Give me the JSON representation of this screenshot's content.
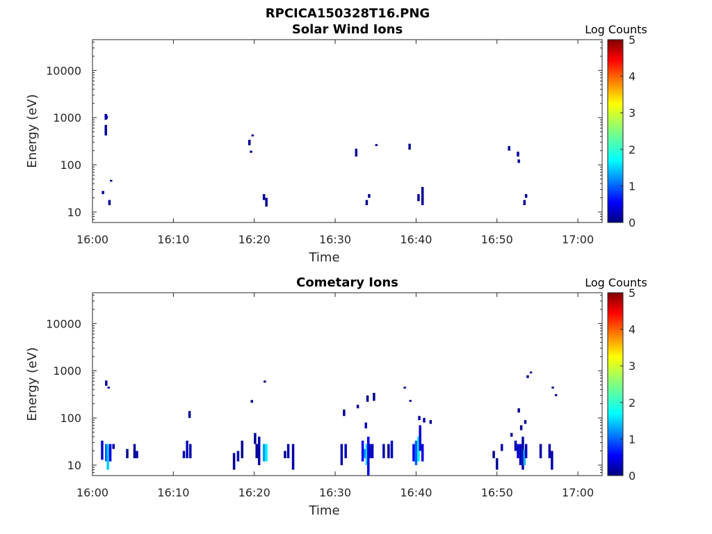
{
  "figure_title": "RPCICA150328T16.PNG",
  "chart_data": [
    {
      "type": "heatmap",
      "title": "Solar Wind Ions",
      "xlabel": "Time",
      "ylabel": "Energy (eV)",
      "x_ticks": [
        "16:00",
        "16:10",
        "16:20",
        "16:30",
        "16:40",
        "16:50",
        "17:00"
      ],
      "x_tick_minutes": [
        0,
        10,
        20,
        30,
        40,
        50,
        60
      ],
      "xlim_minutes": [
        0,
        63
      ],
      "y_scale": "log",
      "ylim": [
        6,
        45000
      ],
      "y_ticks": [
        10,
        100,
        1000,
        10000
      ],
      "y_tick_labels": [
        "10",
        "100",
        "1000",
        "10000"
      ],
      "colorbar": {
        "label": "Log Counts",
        "range": [
          0,
          5
        ],
        "ticks": [
          "0",
          "1",
          "2",
          "3",
          "4",
          "5"
        ],
        "colormap": "jet"
      },
      "cells": [
        [
          1.65,
          900,
          1200,
          0.1
        ],
        [
          1.75,
          950,
          1100,
          0.3
        ],
        [
          1.65,
          420,
          700,
          0.1
        ],
        [
          1.3,
          24,
          28,
          0.1
        ],
        [
          2.3,
          44,
          48,
          0.1
        ],
        [
          2.1,
          14,
          18,
          0.1
        ],
        [
          19.4,
          260,
          340,
          0.1
        ],
        [
          19.6,
          180,
          200,
          0.1
        ],
        [
          19.8,
          400,
          440,
          0.1
        ],
        [
          21.2,
          18,
          24,
          0.1
        ],
        [
          21.5,
          13,
          20,
          0.1
        ],
        [
          32.6,
          150,
          220,
          0.1
        ],
        [
          35.1,
          250,
          275,
          0.1
        ],
        [
          33.9,
          14,
          18,
          0.1
        ],
        [
          34.2,
          20,
          24,
          0.1
        ],
        [
          39.2,
          210,
          280,
          0.1
        ],
        [
          40.3,
          17,
          24,
          0.1
        ],
        [
          40.8,
          14,
          34,
          0.1
        ],
        [
          51.5,
          200,
          250,
          0.1
        ],
        [
          52.6,
          150,
          190,
          0.1
        ],
        [
          52.7,
          110,
          130,
          0.1
        ],
        [
          53.4,
          14,
          18,
          0.1
        ],
        [
          53.6,
          20,
          24,
          0.1
        ]
      ]
    },
    {
      "type": "heatmap",
      "title": "Cometary Ions",
      "xlabel": "Time",
      "ylabel": "Energy (eV)",
      "x_ticks": [
        "16:00",
        "16:10",
        "16:20",
        "16:30",
        "16:40",
        "16:50",
        "17:00"
      ],
      "x_tick_minutes": [
        0,
        10,
        20,
        30,
        40,
        50,
        60
      ],
      "xlim_minutes": [
        0,
        63
      ],
      "y_scale": "log",
      "ylim": [
        6,
        45000
      ],
      "y_ticks": [
        10,
        100,
        1000,
        10000
      ],
      "y_tick_labels": [
        "10",
        "100",
        "1000",
        "10000"
      ],
      "colorbar": {
        "label": "Log Counts",
        "range": [
          0,
          5
        ],
        "ticks": [
          "0",
          "1",
          "2",
          "3",
          "4",
          "5"
        ],
        "colormap": "jet"
      },
      "cells": [
        [
          1.7,
          480,
          620,
          0.1
        ],
        [
          2.0,
          420,
          460,
          0.2
        ],
        [
          1.2,
          13,
          33,
          0.4
        ],
        [
          1.7,
          12,
          28,
          1.0
        ],
        [
          1.9,
          8,
          28,
          1.6
        ],
        [
          2.2,
          12,
          28,
          0.5
        ],
        [
          2.6,
          22,
          28,
          0.2
        ],
        [
          4.3,
          14,
          22,
          0.1
        ],
        [
          5.2,
          14,
          28,
          0.1
        ],
        [
          5.5,
          14,
          20,
          0.2
        ],
        [
          11.3,
          14,
          20,
          0.2
        ],
        [
          11.7,
          14,
          33,
          0.3
        ],
        [
          12.0,
          100,
          140,
          0.1
        ],
        [
          12.1,
          14,
          28,
          0.2
        ],
        [
          17.5,
          8,
          18,
          0.1
        ],
        [
          18.0,
          12,
          20,
          0.3
        ],
        [
          18.5,
          14,
          33,
          0.1
        ],
        [
          19.7,
          210,
          240,
          0.1
        ],
        [
          20.1,
          28,
          48,
          0.1
        ],
        [
          20.3,
          14,
          28,
          0.1
        ],
        [
          20.6,
          10,
          40,
          0.2
        ],
        [
          21.3,
          560,
          620,
          0.1
        ],
        [
          21.2,
          12,
          28,
          1.4
        ],
        [
          21.5,
          12,
          28,
          1.8
        ],
        [
          23.8,
          14,
          20,
          0.1
        ],
        [
          24.2,
          14,
          28,
          0.2
        ],
        [
          24.8,
          8,
          28,
          0.2
        ],
        [
          30.8,
          10,
          28,
          0.2
        ],
        [
          31.1,
          110,
          150,
          0.1
        ],
        [
          31.3,
          14,
          28,
          0.3
        ],
        [
          32.8,
          160,
          190,
          0.1
        ],
        [
          33.4,
          12,
          33,
          0.6
        ],
        [
          33.7,
          14,
          22,
          1.3
        ],
        [
          33.9,
          10,
          28,
          1.7
        ],
        [
          34.1,
          6,
          40,
          0.5
        ],
        [
          34.3,
          14,
          28,
          0.3
        ],
        [
          34.6,
          14,
          28,
          0.3
        ],
        [
          33.8,
          60,
          80,
          0.3
        ],
        [
          34.0,
          220,
          300,
          0.1
        ],
        [
          34.8,
          230,
          340,
          0.1
        ],
        [
          36.0,
          14,
          28,
          0.2
        ],
        [
          36.6,
          14,
          28,
          0.1
        ],
        [
          37.0,
          14,
          33,
          0.3
        ],
        [
          38.6,
          420,
          460,
          0.1
        ],
        [
          39.3,
          220,
          240,
          0.1
        ],
        [
          39.7,
          12,
          28,
          0.5
        ],
        [
          40.0,
          10,
          33,
          1.1
        ],
        [
          40.3,
          12,
          40,
          1.8
        ],
        [
          40.5,
          20,
          70,
          0.4
        ],
        [
          40.8,
          12,
          28,
          0.5
        ],
        [
          40.4,
          90,
          110,
          0.2
        ],
        [
          41.0,
          80,
          100,
          0.2
        ],
        [
          41.8,
          75,
          90,
          0.1
        ],
        [
          49.6,
          14,
          20,
          0.1
        ],
        [
          50.0,
          8,
          14,
          0.1
        ],
        [
          50.6,
          20,
          28,
          0.2
        ],
        [
          51.8,
          40,
          48,
          0.1
        ],
        [
          52.3,
          20,
          33,
          0.2
        ],
        [
          52.6,
          14,
          28,
          0.4
        ],
        [
          52.9,
          10,
          28,
          0.3
        ],
        [
          53.2,
          8,
          40,
          0.2
        ],
        [
          53.4,
          10,
          22,
          1.5
        ],
        [
          53.6,
          14,
          28,
          0.3
        ],
        [
          52.7,
          130,
          160,
          0.1
        ],
        [
          53.0,
          55,
          70,
          0.1
        ],
        [
          53.5,
          75,
          90,
          0.1
        ],
        [
          53.8,
          700,
          800,
          0.1
        ],
        [
          54.2,
          880,
          960,
          0.1
        ],
        [
          55.4,
          14,
          28,
          0.2
        ],
        [
          56.5,
          14,
          28,
          0.2
        ],
        [
          56.8,
          8,
          20,
          0.2
        ],
        [
          56.9,
          420,
          460,
          0.1
        ],
        [
          57.3,
          290,
          320,
          0.1
        ]
      ]
    }
  ]
}
